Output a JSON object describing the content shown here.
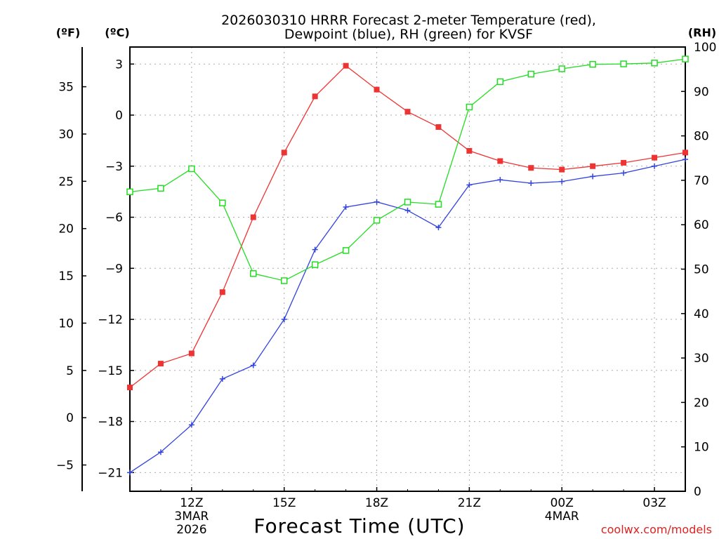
{
  "chart_data": {
    "type": "line",
    "title_line1": "2026030310 HRRR Forecast 2-meter Temperature (red),",
    "title_line2": "Dewpoint (blue), RH (green) for KVSF",
    "xlabel": "Forecast Time (UTC)",
    "unit_labels": {
      "fahrenheit": "(ºF)",
      "celsius": "(ºC)",
      "rh": "(RH)"
    },
    "credit": "coolwx.com/models",
    "x_hours": [
      0,
      1,
      2,
      3,
      4,
      5,
      6,
      7,
      8,
      9,
      10,
      11,
      12,
      13,
      14,
      15,
      16,
      17,
      18
    ],
    "xlim": [
      0,
      18
    ],
    "celsius_ylim": [
      -22.1,
      4.0
    ],
    "rh_ylim": [
      0,
      100
    ],
    "x_ticks": [
      {
        "hour": 2,
        "label": "12Z",
        "sub1": "3MAR",
        "sub2": "2026"
      },
      {
        "hour": 5,
        "label": "15Z",
        "sub1": "",
        "sub2": ""
      },
      {
        "hour": 8,
        "label": "18Z",
        "sub1": "",
        "sub2": ""
      },
      {
        "hour": 11,
        "label": "21Z",
        "sub1": "",
        "sub2": ""
      },
      {
        "hour": 14,
        "label": "00Z",
        "sub1": "4MAR",
        "sub2": ""
      },
      {
        "hour": 17,
        "label": "03Z",
        "sub1": "",
        "sub2": ""
      }
    ],
    "celsius_ticks": [
      3,
      0,
      -3,
      -6,
      -9,
      -12,
      -15,
      -18,
      -21
    ],
    "celsius_tick_labels": [
      "3",
      "0",
      "−3",
      "−6",
      "−9",
      "−12",
      "−15",
      "−18",
      "−21"
    ],
    "fahrenheit_ticks": [
      35,
      30,
      25,
      20,
      15,
      10,
      5,
      0,
      -5
    ],
    "fahrenheit_tick_labels": [
      "35",
      "30",
      "25",
      "20",
      "15",
      "10",
      "5",
      "0",
      "−5"
    ],
    "rh_ticks": [
      100,
      90,
      80,
      70,
      60,
      50,
      40,
      30,
      20,
      10,
      0
    ],
    "rh_tick_labels": [
      "100",
      "90",
      "80",
      "70",
      "60",
      "50",
      "40",
      "30",
      "20",
      "10",
      "0"
    ],
    "series": [
      {
        "name": "2-meter Temperature",
        "color": "#ee3333",
        "marker": "filled-square",
        "axis": "celsius",
        "values": [
          -16.0,
          -14.6,
          -14.0,
          -10.4,
          -6.0,
          -2.2,
          1.1,
          2.9,
          1.5,
          0.2,
          -0.7,
          -2.1,
          -2.7,
          -3.1,
          -3.2,
          -3.0,
          -2.8,
          -2.5,
          -2.2
        ]
      },
      {
        "name": "Dewpoint",
        "color": "#3344dd",
        "marker": "plus",
        "axis": "celsius",
        "values": [
          -21.0,
          -19.8,
          -18.2,
          -15.5,
          -14.7,
          -12.0,
          -7.9,
          -5.4,
          -5.1,
          -5.6,
          -6.6,
          -4.1,
          -3.8,
          -4.0,
          -3.9,
          -3.6,
          -3.4,
          -3.0,
          -2.6
        ]
      },
      {
        "name": "RH",
        "color": "#22dd22",
        "marker": "open-square",
        "axis": "rh",
        "values": [
          67.4,
          68.2,
          72.6,
          64.9,
          49.0,
          47.4,
          51.0,
          54.2,
          61.0,
          65.1,
          64.6,
          86.5,
          92.2,
          93.9,
          95.1,
          96.1,
          96.2,
          96.4,
          97.3
        ]
      }
    ]
  }
}
